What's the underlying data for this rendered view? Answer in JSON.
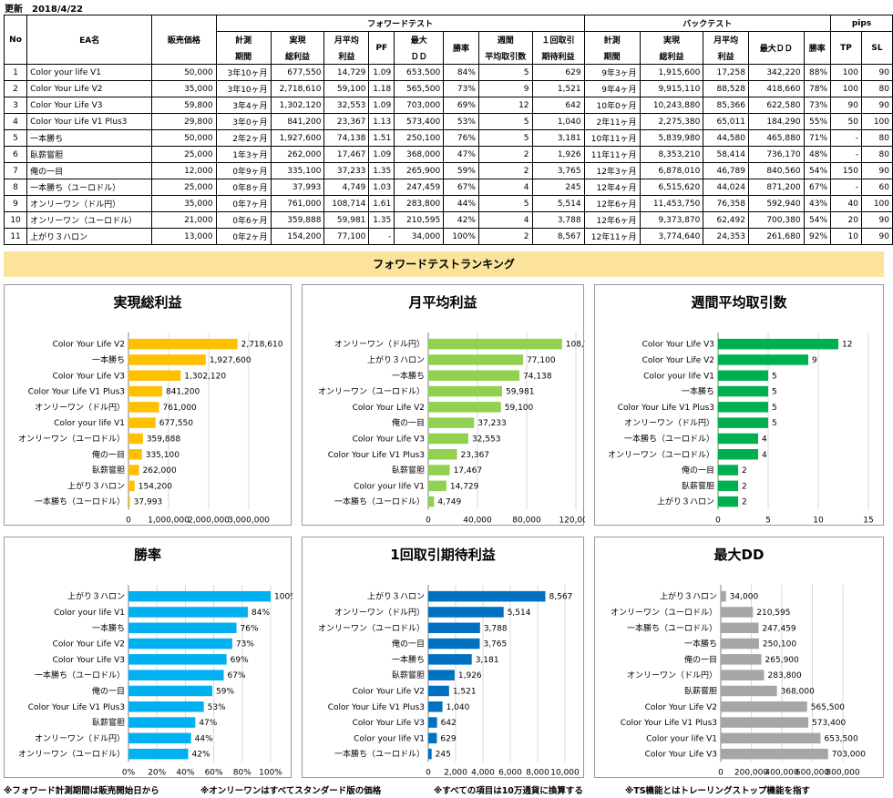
{
  "header": {
    "updated_label": "更新",
    "updated_date": "2018/4/22"
  },
  "table": {
    "col_no": "No",
    "col_name": "EA名",
    "col_price": "販売価格",
    "group_forward": "フォワードテスト",
    "group_back": "バックテスト",
    "group_pips": "pips",
    "f_period_1": "計測",
    "f_period_2": "期間",
    "f_profit_1": "実現",
    "f_profit_2": "総利益",
    "f_month_1": "月平均",
    "f_month_2": "利益",
    "f_pf": "PF",
    "f_dd_1": "最大",
    "f_dd_2": "ＤＤ",
    "f_win": "勝率",
    "f_weekly_1": "週間",
    "f_weekly_2": "平均取引数",
    "f_exp_1": "１回取引",
    "f_exp_2": "期待利益",
    "b_period_1": "計測",
    "b_period_2": "期間",
    "b_profit_1": "実現",
    "b_profit_2": "総利益",
    "b_month_1": "月平均",
    "b_month_2": "利益",
    "b_dd": "最大ＤＤ",
    "b_win": "勝率",
    "p_tp": "TP",
    "p_sl": "SL",
    "rows": [
      [
        "1",
        "Color your life V1",
        "50,000",
        "3年10ヶ月",
        "677,550",
        "14,729",
        "1.09",
        "653,500",
        "84%",
        "5",
        "629",
        "9年3ヶ月",
        "1,915,600",
        "17,258",
        "342,220",
        "88%",
        "100",
        "90"
      ],
      [
        "2",
        "Color Your Life V2",
        "35,000",
        "3年10ヶ月",
        "2,718,610",
        "59,100",
        "1.18",
        "565,500",
        "73%",
        "9",
        "1,521",
        "9年4ヶ月",
        "9,915,110",
        "88,528",
        "418,660",
        "78%",
        "100",
        "80"
      ],
      [
        "3",
        "Color Your Life V3",
        "59,800",
        "3年4ヶ月",
        "1,302,120",
        "32,553",
        "1.09",
        "703,000",
        "69%",
        "12",
        "642",
        "10年0ヶ月",
        "10,243,880",
        "85,366",
        "622,580",
        "73%",
        "90",
        "90"
      ],
      [
        "4",
        "Color Your Life V1 Plus3",
        "29,800",
        "3年0ヶ月",
        "841,200",
        "23,367",
        "1.13",
        "573,400",
        "53%",
        "5",
        "1,040",
        "2年11ヶ月",
        "2,275,380",
        "65,011",
        "184,290",
        "55%",
        "50",
        "100"
      ],
      [
        "5",
        "一本勝ち",
        "50,000",
        "2年2ヶ月",
        "1,927,600",
        "74,138",
        "1.51",
        "250,100",
        "76%",
        "5",
        "3,181",
        "10年11ヶ月",
        "5,839,980",
        "44,580",
        "465,880",
        "71%",
        "-",
        "80"
      ],
      [
        "6",
        "臥薪嘗胆",
        "25,000",
        "1年3ヶ月",
        "262,000",
        "17,467",
        "1.09",
        "368,000",
        "47%",
        "2",
        "1,926",
        "11年11ヶ月",
        "8,353,210",
        "58,414",
        "736,170",
        "48%",
        "-",
        "80"
      ],
      [
        "7",
        "俺の一目",
        "12,000",
        "0年9ヶ月",
        "335,100",
        "37,233",
        "1.35",
        "265,900",
        "59%",
        "2",
        "3,765",
        "12年3ヶ月",
        "6,878,010",
        "46,789",
        "840,560",
        "54%",
        "150",
        "90"
      ],
      [
        "8",
        "一本勝ち（ユーロドル）",
        "25,000",
        "0年8ヶ月",
        "37,993",
        "4,749",
        "1.03",
        "247,459",
        "67%",
        "4",
        "245",
        "12年4ヶ月",
        "6,515,620",
        "44,024",
        "871,200",
        "67%",
        "-",
        "60"
      ],
      [
        "9",
        "オンリーワン（ドル円）",
        "35,000",
        "0年7ヶ月",
        "761,000",
        "108,714",
        "1.61",
        "283,800",
        "44%",
        "5",
        "5,514",
        "12年6ヶ月",
        "11,453,750",
        "76,358",
        "592,940",
        "43%",
        "40",
        "100"
      ],
      [
        "10",
        "オンリーワン（ユーロドル）",
        "21,000",
        "0年6ヶ月",
        "359,888",
        "59,981",
        "1.35",
        "210,595",
        "42%",
        "4",
        "3,788",
        "12年6ヶ月",
        "9,373,870",
        "62,492",
        "700,380",
        "54%",
        "20",
        "90"
      ],
      [
        "11",
        "上がり３ハロン",
        "13,000",
        "0年2ヶ月",
        "154,200",
        "77,100",
        "-",
        "34,000",
        "100%",
        "2",
        "8,567",
        "12年11ヶ月",
        "3,774,640",
        "24,353",
        "261,680",
        "92%",
        "10",
        "90"
      ]
    ]
  },
  "ranking_title": "フォワードテストランキング",
  "footnotes": [
    "※フォワード計測期間は販売開始日から",
    "※オンリーワンはすべてスタンダード版の価格",
    "※すべての項目は10万通貨に換算する",
    "※TS機能とはトレーリングストップ機能を指す"
  ],
  "chart_data": [
    {
      "type": "bar",
      "title": "実現総利益",
      "color": "#ffc000",
      "categories": [
        "Color Your Life V2",
        "一本勝ち",
        "Color Your Life V3",
        "Color Your Life V1 Plus3",
        "オンリーワン（ドル円）",
        "Color your life V1",
        "オンリーワン（ユーロドル）",
        "俺の一目",
        "臥薪嘗胆",
        "上がり３ハロン",
        "一本勝ち（ユーロドル）"
      ],
      "values": [
        2718610,
        1927600,
        1302120,
        841200,
        761000,
        677550,
        359888,
        335100,
        262000,
        154200,
        37993
      ],
      "labels": [
        "2,718,610",
        "1,927,600",
        "1,302,120",
        "841,200",
        "761,000",
        "677,550",
        "359,888",
        "335,100",
        "262,000",
        "154,200",
        "37,993"
      ],
      "ticks": [
        "0",
        "1,000,000",
        "2,000,000",
        "3,000,000"
      ],
      "xlim": [
        0,
        3000000
      ]
    },
    {
      "type": "bar",
      "title": "月平均利益",
      "color": "#92d050",
      "categories": [
        "オンリーワン（ドル円）",
        "上がり３ハロン",
        "一本勝ち",
        "オンリーワン（ユーロドル）",
        "Color Your Life V2",
        "俺の一目",
        "Color Your Life V3",
        "Color Your Life V1 Plus3",
        "臥薪嘗胆",
        "Color your life V1",
        "一本勝ち（ユーロドル）"
      ],
      "values": [
        108714,
        77100,
        74138,
        59981,
        59100,
        37233,
        32553,
        23367,
        17467,
        14729,
        4749
      ],
      "labels": [
        "108,714",
        "77,100",
        "74,138",
        "59,981",
        "59,100",
        "37,233",
        "32,553",
        "23,367",
        "17,467",
        "14,729",
        "4,749"
      ],
      "ticks": [
        "0",
        "40,000",
        "80,000",
        "120,000"
      ],
      "xlim": [
        0,
        120000
      ]
    },
    {
      "type": "bar",
      "title": "週間平均取引数",
      "color": "#00b050",
      "categories": [
        "Color Your Life V3",
        "Color Your Life V2",
        "Color your life V1",
        "一本勝ち",
        "Color Your Life V1 Plus3",
        "オンリーワン（ドル円）",
        "一本勝ち（ユーロドル）",
        "オンリーワン（ユーロドル）",
        "俺の一目",
        "臥薪嘗胆",
        "上がり３ハロン"
      ],
      "values": [
        12,
        9,
        5,
        5,
        5,
        5,
        4,
        4,
        2,
        2,
        2
      ],
      "labels": [
        "12",
        "9",
        "5",
        "5",
        "5",
        "5",
        "4",
        "4",
        "2",
        "2",
        "2"
      ],
      "ticks": [
        "0",
        "5",
        "10",
        "15"
      ],
      "xlim": [
        0,
        15
      ]
    },
    {
      "type": "bar",
      "title": "勝率",
      "color": "#00b0f0",
      "categories": [
        "上がり３ハロン",
        "Color your life V1",
        "一本勝ち",
        "Color Your Life V2",
        "Color Your Life V3",
        "一本勝ち（ユーロドル）",
        "俺の一目",
        "Color Your Life V1 Plus3",
        "臥薪嘗胆",
        "オンリーワン（ドル円）",
        "オンリーワン（ユーロドル）"
      ],
      "values": [
        100,
        84,
        76,
        73,
        69,
        67,
        59,
        53,
        47,
        44,
        42
      ],
      "labels": [
        "100%",
        "84%",
        "76%",
        "73%",
        "69%",
        "67%",
        "59%",
        "53%",
        "47%",
        "44%",
        "42%"
      ],
      "ticks": [
        "0%",
        "20%",
        "40%",
        "60%",
        "80%",
        "100%"
      ],
      "xlim": [
        0,
        100
      ]
    },
    {
      "type": "bar",
      "title": "1回取引期待利益",
      "color": "#0070c0",
      "categories": [
        "上がり３ハロン",
        "オンリーワン（ドル円）",
        "オンリーワン（ユーロドル）",
        "俺の一目",
        "一本勝ち",
        "臥薪嘗胆",
        "Color Your Life V2",
        "Color Your Life V1 Plus3",
        "Color Your Life V3",
        "Color your life V1",
        "一本勝ち（ユーロドル）"
      ],
      "values": [
        8567,
        5514,
        3788,
        3765,
        3181,
        1926,
        1521,
        1040,
        642,
        629,
        245
      ],
      "labels": [
        "8,567",
        "5,514",
        "3,788",
        "3,765",
        "3,181",
        "1,926",
        "1,521",
        "1,040",
        "642",
        "629",
        "245"
      ],
      "ticks": [
        "0",
        "2,000",
        "4,000",
        "6,000",
        "8,000",
        "10,000"
      ],
      "xlim": [
        0,
        10000
      ]
    },
    {
      "type": "bar",
      "title": "最大DD",
      "color": "#a6a6a6",
      "categories": [
        "上がり３ハロン",
        "オンリーワン（ユーロドル）",
        "一本勝ち（ユーロドル）",
        "一本勝ち",
        "俺の一目",
        "オンリーワン（ドル円）",
        "臥薪嘗胆",
        "Color Your Life V2",
        "Color Your Life V1 Plus3",
        "Color your life V1",
        "Color Your Life V3"
      ],
      "values": [
        34000,
        210595,
        247459,
        250100,
        265900,
        283800,
        368000,
        565500,
        573400,
        653500,
        703000
      ],
      "labels": [
        "34,000",
        "210,595",
        "247,459",
        "250,100",
        "265,900",
        "283,800",
        "368,000",
        "565,500",
        "573,400",
        "653,500",
        "703,000"
      ],
      "ticks": [
        "0",
        "200,000",
        "400,000",
        "600,000",
        "800,000"
      ],
      "xlim": [
        0,
        800000
      ]
    }
  ]
}
